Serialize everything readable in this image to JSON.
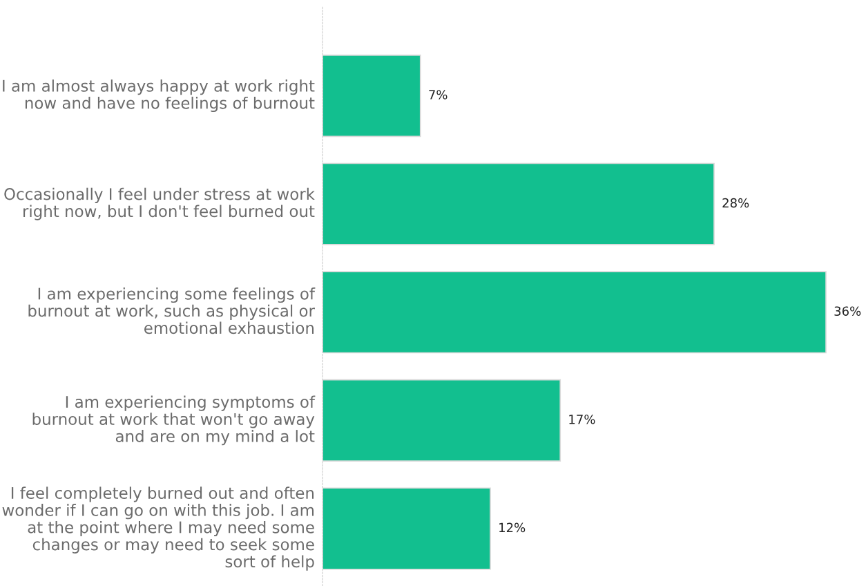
{
  "chart_data": {
    "type": "bar",
    "orientation": "horizontal",
    "categories": [
      "I am almost always happy at work right now and have no feelings of burnout",
      "Occasionally I feel under stress at work right now, but I don't feel burned out",
      "I am experiencing some feelings of burnout at work, such as physical or emotional exhaustion",
      "I am experiencing symptoms of burnout at work that won't go away and are on my mind a lot",
      "I feel completely burned out and often wonder if I can go on with this job. I am at the point where I may need some changes or may need to seek some sort of help"
    ],
    "values": [
      7,
      28,
      36,
      17,
      12
    ],
    "value_labels": [
      "7%",
      "28%",
      "36%",
      "17%",
      "12%"
    ],
    "color": "#12bf8f"
  }
}
